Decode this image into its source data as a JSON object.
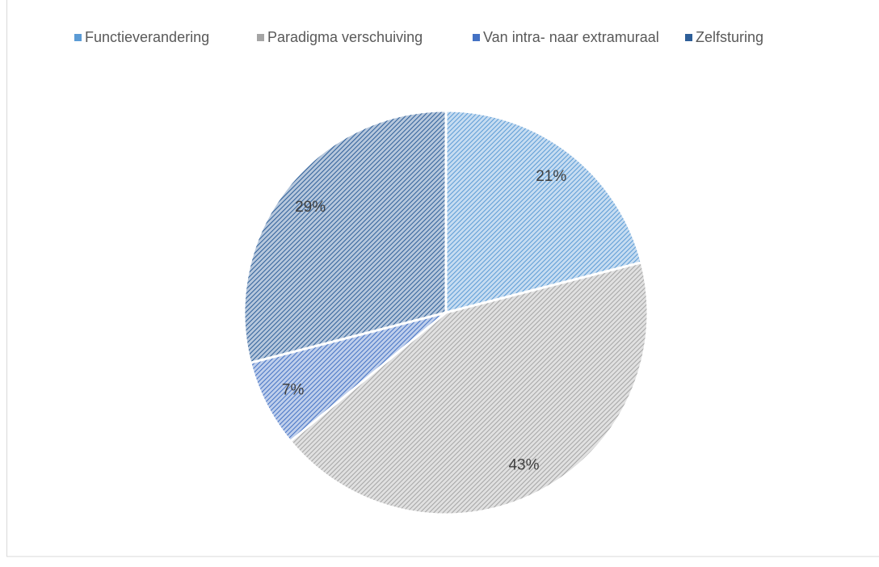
{
  "chart_data": {
    "type": "pie",
    "categories": [
      "Functieverandering",
      "Paradigma verschuiving",
      "Van intra- naar extramuraal",
      "Zelfsturing"
    ],
    "values": [
      21,
      43,
      7,
      29
    ],
    "value_labels": [
      "21%",
      "43%",
      "7%",
      "29%"
    ],
    "colors": [
      "#5b9bd5",
      "#a5a5a5",
      "#4472c4",
      "#2e5f99"
    ],
    "legend": "top"
  }
}
